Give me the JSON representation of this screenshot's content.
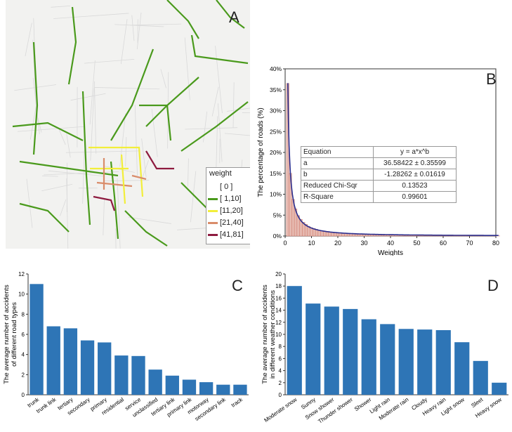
{
  "panel_a": {
    "letter": "A",
    "legend": {
      "title": "weight",
      "entries": [
        {
          "label": "[ 0 ]",
          "color": "#d9d9d9"
        },
        {
          "label": "[ 1,10]",
          "color": "#4a9a1c"
        },
        {
          "label": "[11,20]",
          "color": "#f2ee3a"
        },
        {
          "label": "[21,40]",
          "color": "#d98c6a"
        },
        {
          "label": "[41,81]",
          "color": "#8e1b3f"
        }
      ]
    }
  },
  "panel_b": {
    "letter": "B",
    "fit_table": {
      "rows": [
        {
          "name": "Equation",
          "value": "y = a*x^b"
        },
        {
          "name": "a",
          "value": "36.58422 ± 0.35599"
        },
        {
          "name": "b",
          "value": "-1.28262 ± 0.01619"
        },
        {
          "name": "Reduced Chi-Sqr",
          "value": "0.13523"
        },
        {
          "name": "R-Square",
          "value": "0.99601"
        }
      ]
    }
  },
  "panel_c": {
    "letter": "C"
  },
  "panel_d": {
    "letter": "D"
  },
  "chart_data": [
    {
      "id": "B",
      "type": "bar",
      "xlabel": "Weights",
      "ylabel": "The percentage of roads (%)",
      "xlim": [
        0,
        80
      ],
      "ylim": [
        0,
        40
      ],
      "xticks": [
        0,
        10,
        20,
        30,
        40,
        50,
        60,
        70,
        80
      ],
      "yticks": [
        "0%",
        "5%",
        "10%",
        "15%",
        "20%",
        "25%",
        "30%",
        "35%",
        "40%"
      ],
      "bar_color": "#e6b9b0",
      "fit_color": "#2b2f8f",
      "fit": {
        "a": 36.58422,
        "b": -1.28262
      },
      "x": [
        1,
        2,
        3,
        4,
        5,
        6,
        7,
        8,
        9,
        10,
        11,
        12,
        13,
        14,
        15,
        16,
        17,
        18,
        19,
        20,
        21,
        22,
        23,
        24,
        25,
        26,
        27,
        28,
        29,
        30,
        31,
        32,
        33,
        34,
        35,
        36,
        37,
        38,
        39,
        40,
        41,
        42,
        43,
        44,
        45,
        46,
        47,
        48,
        49,
        50,
        51,
        52,
        53,
        54,
        55,
        56,
        57,
        58,
        59,
        60,
        61,
        62,
        63,
        64,
        65,
        66,
        67,
        68,
        69,
        70,
        71,
        72,
        73,
        74,
        75,
        76,
        77,
        78,
        79,
        80,
        81
      ],
      "values": [
        36.5,
        15.0,
        8.8,
        6.5,
        4.9,
        4.0,
        3.3,
        2.8,
        2.3,
        2.0,
        1.8,
        1.6,
        1.4,
        1.3,
        1.2,
        1.1,
        1.0,
        0.9,
        0.85,
        0.8,
        0.75,
        0.7,
        0.65,
        0.6,
        0.55,
        0.5,
        0.5,
        0.45,
        0.45,
        0.4,
        0.4,
        0.35,
        0.35,
        0.3,
        0.3,
        0.3,
        0.25,
        0.25,
        0.25,
        0.2,
        0.2,
        0.2,
        0.2,
        0.2,
        0.15,
        0.15,
        0.15,
        0.15,
        0.15,
        0.1,
        0.1,
        0.1,
        0.1,
        0.1,
        0.1,
        0.1,
        0.1,
        0.1,
        0.1,
        0.1,
        0.1,
        0.05,
        0.05,
        0.05,
        0.05,
        0.05,
        0.05,
        0.05,
        0.05,
        0.05,
        0.05,
        0.05,
        0.05,
        0.05,
        0.05,
        0.05,
        0.05,
        0.05,
        0.05,
        0.05,
        0.05
      ]
    },
    {
      "id": "C",
      "type": "bar",
      "ylabel": "The average number of accidents of different road types",
      "ylabel_lines": [
        "The average number of accidents",
        "of different road types"
      ],
      "ylim": [
        0,
        12
      ],
      "yticks": [
        0,
        2,
        4,
        6,
        8,
        10,
        12
      ],
      "bar_color": "#2e75b6",
      "categories": [
        "trunk",
        "trunk link",
        "tertiary",
        "secondary",
        "primary",
        "residential",
        "service",
        "unclassified",
        "tertiary link",
        "primary link",
        "motorway",
        "secondary link",
        "track"
      ],
      "values": [
        11.0,
        6.8,
        6.6,
        5.4,
        5.2,
        3.9,
        3.85,
        2.5,
        1.9,
        1.5,
        1.25,
        1.0,
        1.0
      ]
    },
    {
      "id": "D",
      "type": "bar",
      "ylabel": "The average number of accidents in different weather conditions",
      "ylabel_lines": [
        "The average number of accidents",
        "in different weather conditions"
      ],
      "ylim": [
        0,
        20
      ],
      "yticks": [
        0,
        2,
        4,
        6,
        8,
        10,
        12,
        14,
        16,
        18,
        20
      ],
      "bar_color": "#2e75b6",
      "categories": [
        "Moderate snow",
        "Sunny",
        "Snow shower",
        "Thunder shower",
        "Shower",
        "Light rain",
        "Moderate rain",
        "Cloudy",
        "Heavy rain",
        "Light snow",
        "Sleet",
        "Heavy snow"
      ],
      "values": [
        18.0,
        15.1,
        14.6,
        14.2,
        12.5,
        11.7,
        10.9,
        10.8,
        10.7,
        8.7,
        5.6,
        2.0
      ]
    }
  ]
}
